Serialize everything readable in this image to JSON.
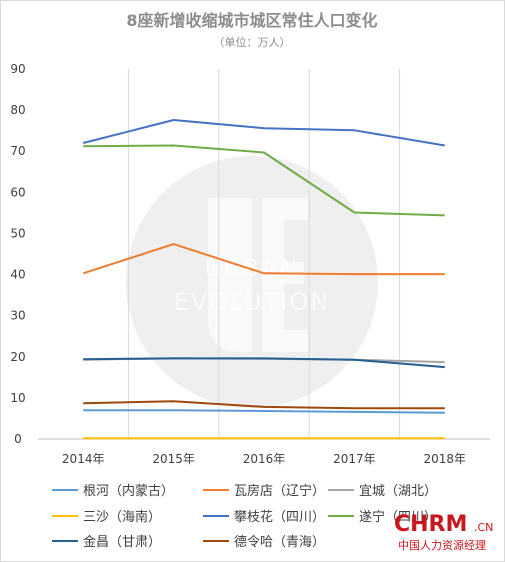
{
  "chart_data": {
    "type": "line",
    "title": "8座新增收缩城市城区常住人口变化",
    "subtitle": "（单位：万人）",
    "x": [
      "2014年",
      "2015年",
      "2016年",
      "2017年",
      "2018年"
    ],
    "ylim": [
      0,
      90
    ],
    "yticks": [
      0,
      10,
      20,
      30,
      40,
      50,
      60,
      70,
      80,
      90
    ],
    "grid": "vertical",
    "legend_position": "bottom",
    "series": [
      {
        "name": "根河（内蒙古）",
        "color": "#5b9bd5",
        "values": [
          7.0,
          7.0,
          6.8,
          6.6,
          6.4
        ]
      },
      {
        "name": "瓦房店（辽宁）",
        "color": "#ed7d31",
        "values": [
          40.3,
          47.4,
          40.3,
          40.1,
          40.1
        ]
      },
      {
        "name": "宜城（湖北）",
        "color": "#a5a5a5",
        "values": [
          19.3,
          19.6,
          19.5,
          19.3,
          18.7
        ]
      },
      {
        "name": "三沙（海南）",
        "color": "#ffc000",
        "values": [
          0.2,
          0.2,
          0.2,
          0.2,
          0.2
        ]
      },
      {
        "name": "攀枝花（四川）",
        "color": "#4472c4",
        "values": [
          72.0,
          77.6,
          75.6,
          75.1,
          71.4
        ]
      },
      {
        "name": "遂宁（四川）",
        "color": "#70ad47",
        "values": [
          71.2,
          71.4,
          69.7,
          55.1,
          54.4
        ]
      },
      {
        "name": "金昌（甘肃）",
        "color": "#255e91",
        "values": [
          19.4,
          19.6,
          19.6,
          19.3,
          17.5
        ]
      },
      {
        "name": "德令哈（青海）",
        "color": "#9e480e",
        "values": [
          8.7,
          9.2,
          7.8,
          7.5,
          7.5
        ]
      }
    ]
  },
  "watermark": {
    "logo_letters": "UE",
    "line1": "URBAN",
    "line2": "EVOLUTION"
  },
  "brand": {
    "name": "CHRM",
    "domain": ".CN",
    "tagline": "中国人力资源经理"
  }
}
